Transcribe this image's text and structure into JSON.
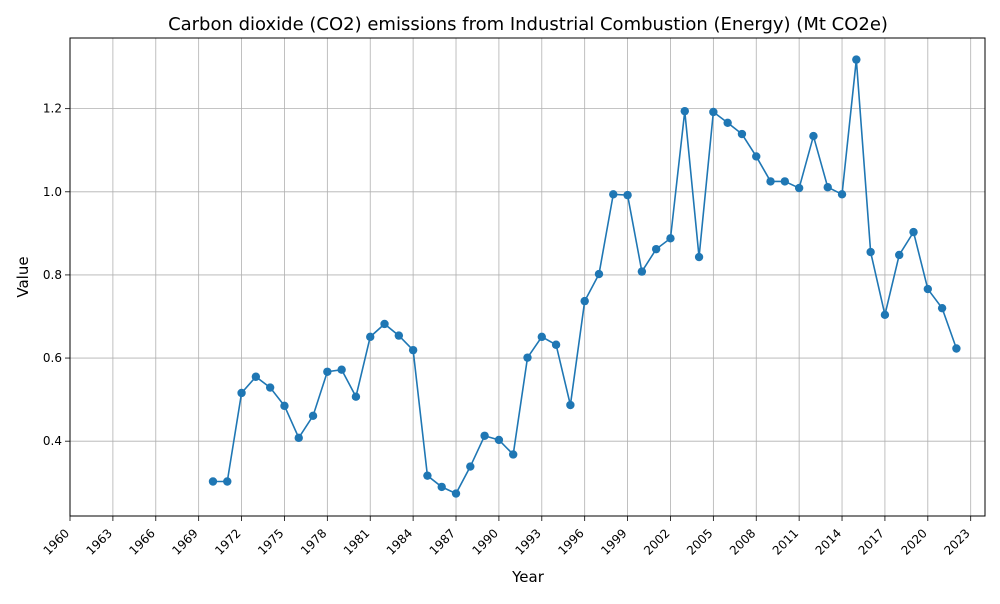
{
  "chart_data": {
    "type": "line",
    "title": "Carbon dioxide (CO2) emissions from Industrial Combustion (Energy) (Mt CO2e)",
    "xlabel": "Year",
    "ylabel": "Value",
    "xlim": [
      1960,
      2024
    ],
    "ylim": [
      0.22,
      1.37
    ],
    "x_ticks": [
      1960,
      1963,
      1966,
      1969,
      1972,
      1975,
      1978,
      1981,
      1984,
      1987,
      1990,
      1993,
      1996,
      1999,
      2002,
      2005,
      2008,
      2011,
      2014,
      2017,
      2020,
      2023
    ],
    "y_ticks": [
      0.4,
      0.6,
      0.8,
      1.0,
      1.2
    ],
    "y_tick_labels": [
      "0.4",
      "0.6",
      "0.8",
      "1.0",
      "1.2"
    ],
    "grid": true,
    "series": [
      {
        "color": "#1f77b4",
        "x": [
          1970,
          1971,
          1972,
          1973,
          1974,
          1975,
          1976,
          1977,
          1978,
          1979,
          1980,
          1981,
          1982,
          1983,
          1984,
          1985,
          1986,
          1987,
          1988,
          1989,
          1990,
          1991,
          1992,
          1993,
          1994,
          1995,
          1996,
          1997,
          1998,
          1999,
          2000,
          2001,
          2002,
          2003,
          2004,
          2005,
          2006,
          2007,
          2008,
          2009,
          2010,
          2011,
          2012,
          2013,
          2014,
          2015,
          2016,
          2017,
          2018,
          2019,
          2020,
          2021,
          2022
        ],
        "values": [
          0.303,
          0.303,
          0.516,
          0.555,
          0.529,
          0.485,
          0.408,
          0.461,
          0.567,
          0.572,
          0.507,
          0.651,
          0.682,
          0.654,
          0.619,
          0.317,
          0.29,
          0.274,
          0.339,
          0.413,
          0.403,
          0.368,
          0.601,
          0.651,
          0.632,
          0.487,
          0.737,
          0.802,
          0.994,
          0.992,
          0.808,
          0.862,
          0.888,
          1.194,
          0.843,
          1.192,
          1.166,
          1.139,
          1.085,
          1.025,
          1.025,
          1.009,
          1.134,
          1.011,
          0.994,
          1.318,
          0.855,
          0.704,
          0.848,
          0.903,
          0.766,
          0.72,
          0.623
        ]
      }
    ]
  }
}
